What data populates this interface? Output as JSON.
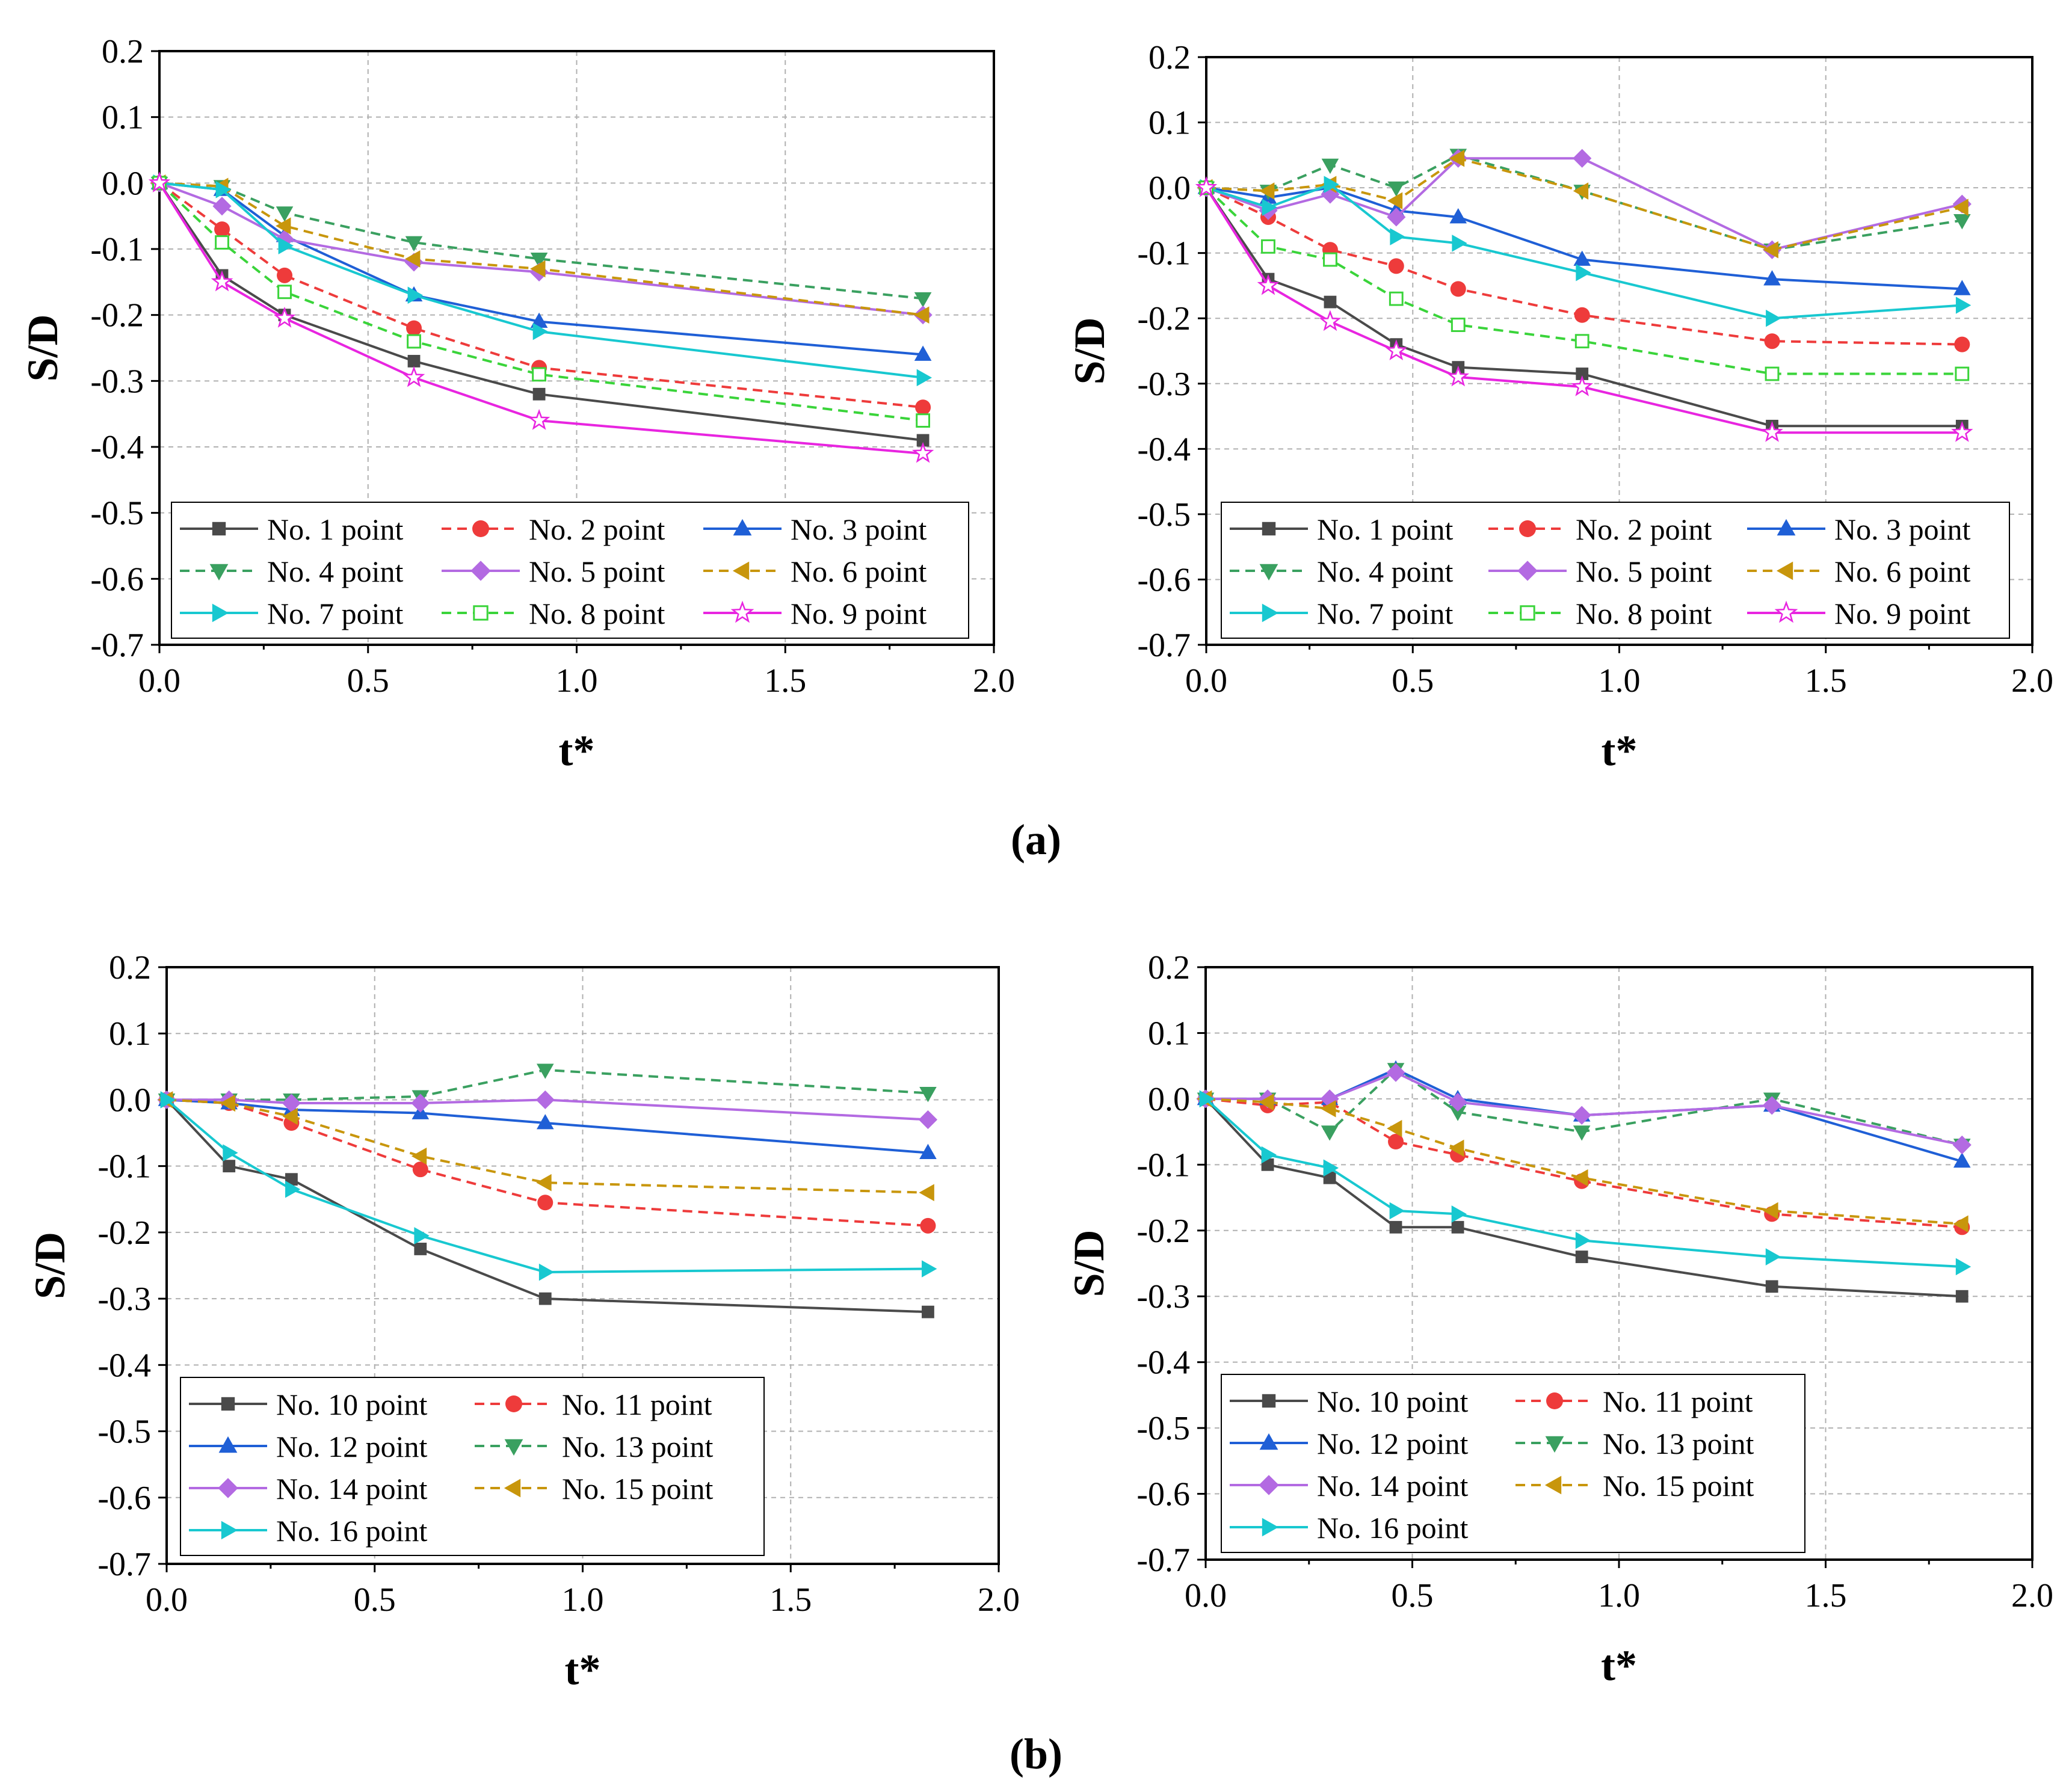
{
  "panel_labels": [
    "(a)",
    "(b)"
  ],
  "chart_data": [
    {
      "type": "line",
      "panel": "a-left",
      "xlabel": "t*",
      "ylabel": "S/D",
      "xlim": [
        0,
        2.0
      ],
      "ylim": [
        -0.7,
        0.2
      ],
      "xticks": [
        "0.0",
        "0.5",
        "1.0",
        "1.5",
        "2.0"
      ],
      "yticks": [
        "-0.7",
        "-0.6",
        "-0.5",
        "-0.4",
        "-0.3",
        "-0.2",
        "-0.1",
        "0.0",
        "0.1",
        "0.2"
      ],
      "grid": true,
      "legend_position": "bottom-left",
      "legend_columns": 3,
      "x": [
        0,
        0.15,
        0.3,
        0.61,
        0.91,
        1.83
      ],
      "series": [
        {
          "name": "No. 1 point",
          "color": "#4a4a4a",
          "dash": "solid",
          "marker": "square",
          "values": [
            0,
            -0.14,
            -0.2,
            -0.27,
            -0.32,
            -0.39
          ]
        },
        {
          "name": "No. 2 point",
          "color": "#ee3b3b",
          "dash": "dashed",
          "marker": "circle",
          "values": [
            0,
            -0.07,
            -0.14,
            -0.22,
            -0.28,
            -0.34
          ]
        },
        {
          "name": "No. 3 point",
          "color": "#1f5fd6",
          "dash": "solid",
          "marker": "triangle-up",
          "values": [
            0,
            -0.01,
            -0.08,
            -0.17,
            -0.21,
            -0.26
          ]
        },
        {
          "name": "No. 4 point",
          "color": "#3aa060",
          "dash": "dashed",
          "marker": "triangle-down",
          "values": [
            0,
            -0.005,
            -0.045,
            -0.09,
            -0.115,
            -0.175
          ]
        },
        {
          "name": "No. 5 point",
          "color": "#b36ae2",
          "dash": "solid",
          "marker": "diamond",
          "values": [
            0,
            -0.035,
            -0.085,
            -0.12,
            -0.135,
            -0.2
          ]
        },
        {
          "name": "No. 6 point",
          "color": "#c8960c",
          "dash": "dashed",
          "marker": "triangle-left",
          "values": [
            0,
            -0.005,
            -0.065,
            -0.115,
            -0.13,
            -0.2
          ]
        },
        {
          "name": "No. 7 point",
          "color": "#18c8d0",
          "dash": "solid",
          "marker": "triangle-right",
          "values": [
            0,
            -0.01,
            -0.095,
            -0.17,
            -0.225,
            -0.295
          ]
        },
        {
          "name": "No. 8 point",
          "color": "#3ad43a",
          "dash": "dashed",
          "marker": "square-open",
          "values": [
            0,
            -0.09,
            -0.165,
            -0.24,
            -0.29,
            -0.36
          ]
        },
        {
          "name": "No. 9 point",
          "color": "#e825e0",
          "dash": "solid",
          "marker": "star-open",
          "values": [
            0,
            -0.15,
            -0.205,
            -0.295,
            -0.36,
            -0.41
          ]
        }
      ]
    },
    {
      "type": "line",
      "panel": "a-right",
      "xlabel": "t*",
      "ylabel": "S/D",
      "xlim": [
        0,
        2.0
      ],
      "ylim": [
        -0.7,
        0.2
      ],
      "xticks": [
        "0.0",
        "0.5",
        "1.0",
        "1.5",
        "2.0"
      ],
      "yticks": [
        "-0.7",
        "-0.6",
        "-0.5",
        "-0.4",
        "-0.3",
        "-0.2",
        "-0.1",
        "0.0",
        "0.1",
        "0.2"
      ],
      "grid": true,
      "legend_position": "bottom-left",
      "legend_columns": 3,
      "x": [
        0,
        0.15,
        0.3,
        0.46,
        0.61,
        0.91,
        1.37,
        1.83
      ],
      "series": [
        {
          "name": "No. 1 point",
          "color": "#4a4a4a",
          "dash": "solid",
          "marker": "square",
          "values": [
            0,
            -0.14,
            -0.175,
            -0.24,
            -0.275,
            -0.285,
            -0.365,
            -0.365
          ]
        },
        {
          "name": "No. 2 point",
          "color": "#ee3b3b",
          "dash": "dashed",
          "marker": "circle",
          "values": [
            0,
            -0.045,
            -0.095,
            -0.12,
            -0.155,
            -0.195,
            -0.235,
            -0.24
          ]
        },
        {
          "name": "No. 3 point",
          "color": "#1f5fd6",
          "dash": "solid",
          "marker": "triangle-up",
          "values": [
            0,
            -0.015,
            0.0,
            -0.035,
            -0.045,
            -0.11,
            -0.14,
            -0.155
          ]
        },
        {
          "name": "No. 4 point",
          "color": "#3aa060",
          "dash": "dashed",
          "marker": "triangle-down",
          "values": [
            0,
            -0.005,
            0.035,
            0.0,
            0.05,
            -0.005,
            -0.095,
            -0.05
          ]
        },
        {
          "name": "No. 5 point",
          "color": "#b36ae2",
          "dash": "solid",
          "marker": "diamond",
          "values": [
            0,
            -0.035,
            -0.01,
            -0.045,
            0.045,
            0.045,
            -0.095,
            -0.025
          ]
        },
        {
          "name": "No. 6 point",
          "color": "#c8960c",
          "dash": "dashed",
          "marker": "triangle-left",
          "values": [
            0,
            -0.005,
            0.005,
            -0.02,
            0.045,
            -0.005,
            -0.095,
            -0.03
          ]
        },
        {
          "name": "No. 7 point",
          "color": "#18c8d0",
          "dash": "solid",
          "marker": "triangle-right",
          "values": [
            0,
            -0.03,
            0.005,
            -0.075,
            -0.085,
            -0.13,
            -0.2,
            -0.18
          ]
        },
        {
          "name": "No. 8 point",
          "color": "#3ad43a",
          "dash": "dashed",
          "marker": "square-open",
          "values": [
            0,
            -0.09,
            -0.11,
            -0.17,
            -0.21,
            -0.235,
            -0.285,
            -0.285
          ]
        },
        {
          "name": "No. 9 point",
          "color": "#e825e0",
          "dash": "solid",
          "marker": "star-open",
          "values": [
            0,
            -0.15,
            -0.205,
            -0.25,
            -0.29,
            -0.305,
            -0.375,
            -0.375
          ]
        }
      ]
    },
    {
      "type": "line",
      "panel": "b-left",
      "xlabel": "t*",
      "ylabel": "S/D",
      "xlim": [
        0,
        2.0
      ],
      "ylim": [
        -0.7,
        0.2
      ],
      "xticks": [
        "0.0",
        "0.5",
        "1.0",
        "1.5",
        "2.0"
      ],
      "yticks": [
        "-0.7",
        "-0.6",
        "-0.5",
        "-0.4",
        "-0.3",
        "-0.2",
        "-0.1",
        "0.0",
        "0.1",
        "0.2"
      ],
      "grid": true,
      "legend_position": "bottom-left",
      "legend_columns": 2,
      "x": [
        0,
        0.15,
        0.3,
        0.61,
        0.91,
        1.83
      ],
      "series": [
        {
          "name": "No. 10 point",
          "color": "#4a4a4a",
          "dash": "solid",
          "marker": "square",
          "values": [
            0,
            -0.1,
            -0.12,
            -0.225,
            -0.3,
            -0.32
          ]
        },
        {
          "name": "No. 11 point",
          "color": "#ee3b3b",
          "dash": "dashed",
          "marker": "circle",
          "values": [
            0,
            -0.005,
            -0.035,
            -0.105,
            -0.155,
            -0.19
          ]
        },
        {
          "name": "No. 12 point",
          "color": "#1f5fd6",
          "dash": "solid",
          "marker": "triangle-up",
          "values": [
            0,
            -0.005,
            -0.015,
            -0.02,
            -0.035,
            -0.08
          ]
        },
        {
          "name": "No. 13 point",
          "color": "#3aa060",
          "dash": "dashed",
          "marker": "triangle-down",
          "values": [
            0,
            0.0,
            0.0,
            0.005,
            0.045,
            0.01
          ]
        },
        {
          "name": "No. 14 point",
          "color": "#b36ae2",
          "dash": "solid",
          "marker": "diamond",
          "values": [
            0,
            0.0,
            -0.005,
            -0.005,
            0.0,
            -0.03
          ]
        },
        {
          "name": "No. 15 point",
          "color": "#c8960c",
          "dash": "dashed",
          "marker": "triangle-left",
          "values": [
            0,
            -0.005,
            -0.025,
            -0.085,
            -0.125,
            -0.14
          ]
        },
        {
          "name": "No. 16 point",
          "color": "#18c8d0",
          "dash": "solid",
          "marker": "triangle-right",
          "values": [
            0,
            -0.08,
            -0.135,
            -0.205,
            -0.26,
            -0.255
          ]
        }
      ]
    },
    {
      "type": "line",
      "panel": "b-right",
      "xlabel": "t*",
      "ylabel": "S/D",
      "xlim": [
        0,
        2.0
      ],
      "ylim": [
        -0.7,
        0.2
      ],
      "xticks": [
        "0.0",
        "0.5",
        "1.0",
        "1.5",
        "2.0"
      ],
      "yticks": [
        "-0.7",
        "-0.6",
        "-0.5",
        "-0.4",
        "-0.3",
        "-0.2",
        "-0.1",
        "0.0",
        "0.1",
        "0.2"
      ],
      "grid": true,
      "legend_position": "bottom-left",
      "legend_columns": 2,
      "x": [
        0,
        0.15,
        0.3,
        0.46,
        0.61,
        0.91,
        1.37,
        1.83
      ],
      "series": [
        {
          "name": "No. 10 point",
          "color": "#4a4a4a",
          "dash": "solid",
          "marker": "square",
          "values": [
            0,
            -0.1,
            -0.12,
            -0.195,
            -0.195,
            -0.24,
            -0.285,
            -0.3
          ]
        },
        {
          "name": "No. 11 point",
          "color": "#ee3b3b",
          "dash": "dashed",
          "marker": "circle",
          "values": [
            0,
            -0.01,
            -0.005,
            -0.065,
            -0.085,
            -0.125,
            -0.175,
            -0.195
          ]
        },
        {
          "name": "No. 12 point",
          "color": "#1f5fd6",
          "dash": "solid",
          "marker": "triangle-up",
          "values": [
            0,
            0.0,
            0.0,
            0.045,
            0.0,
            -0.025,
            -0.01,
            -0.095
          ]
        },
        {
          "name": "No. 13 point",
          "color": "#3aa060",
          "dash": "dashed",
          "marker": "triangle-down",
          "values": [
            0,
            0.0,
            -0.05,
            0.045,
            -0.02,
            -0.05,
            0.0,
            -0.07
          ]
        },
        {
          "name": "No. 14 point",
          "color": "#b36ae2",
          "dash": "solid",
          "marker": "diamond",
          "values": [
            0,
            0.0,
            0.0,
            0.04,
            -0.005,
            -0.025,
            -0.01,
            -0.07
          ]
        },
        {
          "name": "No. 15 point",
          "color": "#c8960c",
          "dash": "dashed",
          "marker": "triangle-left",
          "values": [
            0,
            -0.005,
            -0.015,
            -0.045,
            -0.075,
            -0.12,
            -0.17,
            -0.19
          ]
        },
        {
          "name": "No. 16 point",
          "color": "#18c8d0",
          "dash": "solid",
          "marker": "triangle-right",
          "values": [
            0,
            -0.085,
            -0.105,
            -0.17,
            -0.175,
            -0.215,
            -0.24,
            -0.255
          ]
        }
      ]
    }
  ]
}
